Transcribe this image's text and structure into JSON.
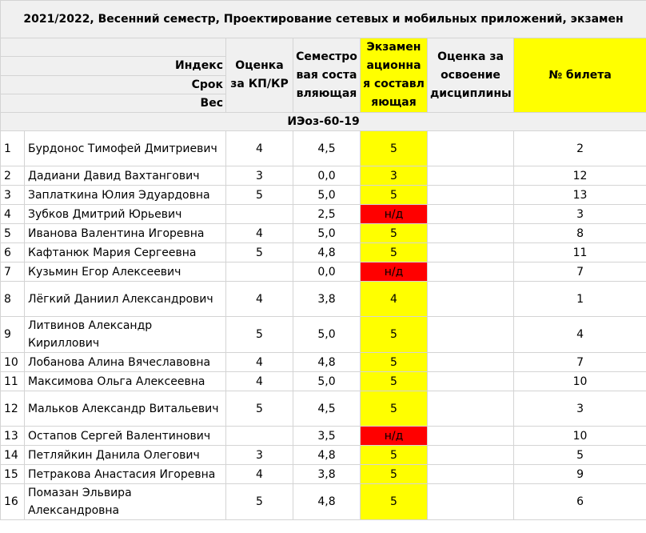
{
  "title": "2021/2022, Весенний семестр, Проектирование сетевых и мобильных приложений, экзамен",
  "headers": {
    "index_label": "Индекс",
    "term_label": "Срок",
    "weight_label": "Вес",
    "col_kp": "Оценка за КП/КР",
    "col_sem": "Семестровая составляющая",
    "col_exam": "Экзаменационная составляющая",
    "col_grade": "Оценка за освоение дисциплины",
    "col_ticket": "№ билета"
  },
  "group": "ИЭоз-60-19",
  "rows": [
    {
      "n": "1",
      "name": "Бурдонос Тимофей Дмитриевич",
      "kp": "4",
      "sem": "4,5",
      "exam": "5",
      "exam_status": "ok",
      "ticket": "2"
    },
    {
      "n": "2",
      "name": "Дадиани Давид Вахтангович",
      "kp": "3",
      "sem": "0,0",
      "exam": "3",
      "exam_status": "ok",
      "ticket": "12"
    },
    {
      "n": "3",
      "name": "Заплаткина Юлия Эдуардовна",
      "kp": "5",
      "sem": "5,0",
      "exam": "5",
      "exam_status": "ok",
      "ticket": "13"
    },
    {
      "n": "4",
      "name": "Зубков Дмитрий Юрьевич",
      "kp": "",
      "sem": "2,5",
      "exam": "н/д",
      "exam_status": "absent",
      "ticket": "3"
    },
    {
      "n": "5",
      "name": "Иванова Валентина Игоревна",
      "kp": "4",
      "sem": "5,0",
      "exam": "5",
      "exam_status": "ok",
      "ticket": "8"
    },
    {
      "n": "6",
      "name": "Кафтанюк Мария Сергеевна",
      "kp": "5",
      "sem": "4,8",
      "exam": "5",
      "exam_status": "ok",
      "ticket": "11"
    },
    {
      "n": "7",
      "name": "Кузьмин Егор Алексеевич",
      "kp": "",
      "sem": "0,0",
      "exam": "н/д",
      "exam_status": "absent",
      "ticket": "7"
    },
    {
      "n": "8",
      "name": "Лёгкий Даниил Александрович",
      "kp": "4",
      "sem": "3,8",
      "exam": "4",
      "exam_status": "ok",
      "ticket": "1"
    },
    {
      "n": "9",
      "name": "Литвинов Александр Кириллович",
      "kp": "5",
      "sem": "5,0",
      "exam": "5",
      "exam_status": "ok",
      "ticket": "4"
    },
    {
      "n": "10",
      "name": "Лобанова Алина Вячеславовна",
      "kp": "4",
      "sem": "4,8",
      "exam": "5",
      "exam_status": "ok",
      "ticket": "7"
    },
    {
      "n": "11",
      "name": "Максимова Ольга Алексеевна",
      "kp": "4",
      "sem": "5,0",
      "exam": "5",
      "exam_status": "ok",
      "ticket": "10"
    },
    {
      "n": "12",
      "name": "Мальков Александр Витальевич",
      "kp": "5",
      "sem": "4,5",
      "exam": "5",
      "exam_status": "ok",
      "ticket": "3"
    },
    {
      "n": "13",
      "name": "Остапов Сергей Валентинович",
      "kp": "",
      "sem": "3,5",
      "exam": "н/д",
      "exam_status": "absent",
      "ticket": "10"
    },
    {
      "n": "14",
      "name": "Петляйкин Данила Олегович",
      "kp": "3",
      "sem": "4,8",
      "exam": "5",
      "exam_status": "ok",
      "ticket": "5"
    },
    {
      "n": "15",
      "name": "Петракова Анастасия Игоревна",
      "kp": "4",
      "sem": "3,8",
      "exam": "5",
      "exam_status": "ok",
      "ticket": "9"
    },
    {
      "n": "16",
      "name": "Помазан Эльвира Александровна",
      "kp": "5",
      "sem": "4,8",
      "exam": "5",
      "exam_status": "ok",
      "ticket": "6"
    }
  ],
  "colors": {
    "exam_ok": "#ffff00",
    "exam_absent": "#ff0000",
    "header_bg": "#f0f0f0"
  }
}
